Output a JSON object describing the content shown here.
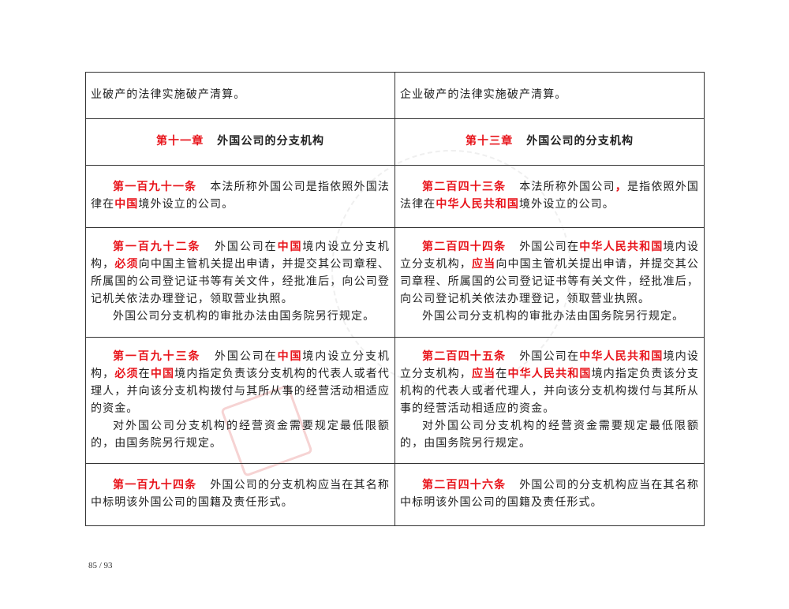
{
  "rows": [
    {
      "left": [
        {
          "segs": [
            {
              "t": "业破产的法律实施破产清算。"
            }
          ],
          "noind": true
        }
      ],
      "right": [
        {
          "segs": [
            {
              "t": "企业破产的法律实施破产清算。"
            }
          ],
          "noind": true
        }
      ]
    },
    {
      "left": [
        {
          "segs": [
            {
              "t": "第十一章",
              "red": true
            },
            {
              "gap": true
            },
            {
              "t": "外国公司的分支机构"
            }
          ],
          "noind": true
        }
      ],
      "right": [
        {
          "segs": [
            {
              "t": "第十三章",
              "red": true
            },
            {
              "gap": true
            },
            {
              "t": "外国公司的分支机构"
            }
          ],
          "noind": true
        }
      ]
    },
    {
      "left": [
        {
          "segs": [
            {
              "t": "第一百九十一条",
              "red": true
            },
            {
              "gap": true
            },
            {
              "t": "本法所称外国公司是指依照外国法律在"
            },
            {
              "t": "中国",
              "red": true
            },
            {
              "t": "境外设立的公司。"
            }
          ]
        }
      ],
      "right": [
        {
          "segs": [
            {
              "t": "第二百四十三条",
              "red": true
            },
            {
              "gap": true
            },
            {
              "t": "本法所称外国公司"
            },
            {
              "t": "，",
              "red": true
            },
            {
              "t": "是指依照外国法律在"
            },
            {
              "t": "中华人民共和国",
              "red": true
            },
            {
              "t": "境外设立的公司。"
            }
          ]
        }
      ]
    },
    {
      "left": [
        {
          "segs": [
            {
              "t": "第一百九十二条",
              "red": true
            },
            {
              "gap": true
            },
            {
              "t": "外国公司在"
            },
            {
              "t": "中国",
              "red": true
            },
            {
              "t": "境内设立分支机构，"
            },
            {
              "t": "必须",
              "red": true
            },
            {
              "t": "向中国主管机关提出申请，并提交其公司章程、所属国的公司登记证书等有关文件，经批准后，向公司登记机关依法办理登记，领取营业执照。"
            }
          ]
        },
        {
          "segs": [
            {
              "t": "外国公司分支机构的审批办法由国务院另行规定。"
            }
          ]
        }
      ],
      "right": [
        {
          "segs": [
            {
              "t": "第二百四十四条",
              "red": true
            },
            {
              "gap": true
            },
            {
              "t": "外国公司在"
            },
            {
              "t": "中华人民共和国",
              "red": true
            },
            {
              "t": "境内设立分支机构，"
            },
            {
              "t": "应当",
              "red": true
            },
            {
              "t": "向中国主管机关提出申请，并提交其公司章程、所属国的公司登记证书等有关文件，经批准后，向公司登记机关依法办理登记，领取营业执照。"
            }
          ]
        },
        {
          "segs": [
            {
              "t": "外国公司分支机构的审批办法由国务院另行规定。"
            }
          ]
        }
      ]
    },
    {
      "left": [
        {
          "segs": [
            {
              "t": "第一百九十三条",
              "red": true
            },
            {
              "gap": true
            },
            {
              "t": "外国公司在"
            },
            {
              "t": "中国",
              "red": true
            },
            {
              "t": "境内设立分支机构，"
            },
            {
              "t": "必须",
              "red": true
            },
            {
              "t": "在"
            },
            {
              "t": "中国",
              "red": true
            },
            {
              "t": "境内指定负责该分支机构的代表人或者代理人，并向该分支机构拨付与其所从事的经营活动相适应的资金。"
            }
          ]
        },
        {
          "segs": [
            {
              "t": "对外国公司分支机构的经营资金需要规定最低限额的，由国务院另行规定。"
            }
          ]
        }
      ],
      "right": [
        {
          "segs": [
            {
              "t": "第二百四十五条",
              "red": true
            },
            {
              "gap": true
            },
            {
              "t": "外国公司在"
            },
            {
              "t": "中华人民共和国",
              "red": true
            },
            {
              "t": "境内设立分支机构，"
            },
            {
              "t": "应当",
              "red": true
            },
            {
              "t": "在"
            },
            {
              "t": "中华人民共和国",
              "red": true
            },
            {
              "t": "境内指定负责该分支机构的代表人或者代理人，并向该分支机构拨付与其所从事的经营活动相适应的资金。"
            }
          ]
        },
        {
          "segs": [
            {
              "t": "对外国公司分支机构的经营资金需要规定最低限额的，由国务院另行规定。"
            }
          ]
        }
      ]
    },
    {
      "left": [
        {
          "segs": [
            {
              "t": "第一百九十四条",
              "red": true
            },
            {
              "gap": true
            },
            {
              "t": "外国公司的分支机构应当在其名称中标明该外国公司的国籍及责任形式。"
            }
          ]
        }
      ],
      "right": [
        {
          "segs": [
            {
              "t": "第二百四十六条",
              "red": true
            },
            {
              "gap": true
            },
            {
              "t": "外国公司的分支机构应当在其名称中标明该外国公司的国籍及责任形式。"
            }
          ]
        }
      ]
    }
  ],
  "footer": {
    "page": "85 / 93"
  },
  "colors": {
    "highlight": "#e8141b",
    "text": "#222222"
  }
}
